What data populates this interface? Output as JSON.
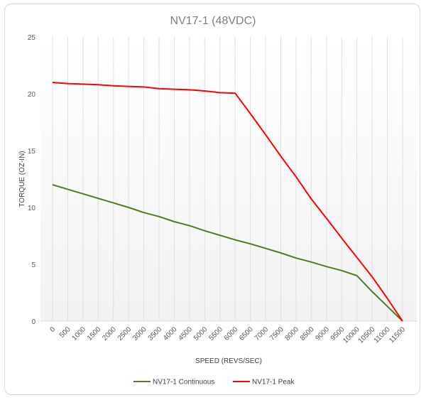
{
  "chart_data": {
    "type": "line",
    "title": "NV17-1 (48VDC)",
    "xlabel": "SPEED (REVS/SEC)",
    "ylabel": "TORQUE (OZ-IN)",
    "categories": [
      "0",
      "500",
      "1000",
      "1500",
      "2000",
      "2500",
      "3000",
      "3500",
      "4000",
      "4500",
      "5000",
      "5500",
      "6000",
      "6500",
      "7000",
      "7500",
      "8000",
      "8500",
      "9000",
      "9500",
      "10000",
      "10500",
      "11000",
      "11500"
    ],
    "ylim": [
      0,
      25
    ],
    "yticks": [
      "0",
      "5",
      "10",
      "15",
      "20",
      "25"
    ],
    "grid": "vertical",
    "legend_position": "bottom",
    "series": [
      {
        "name": "NV17-1 Continuous",
        "color": "#4f7a28",
        "values": [
          12.0,
          11.6,
          11.2,
          10.8,
          10.4,
          10.0,
          9.55,
          9.2,
          8.75,
          8.4,
          7.95,
          7.55,
          7.15,
          6.8,
          6.4,
          6.0,
          5.55,
          5.2,
          4.8,
          4.45,
          4.0,
          2.6,
          1.3,
          0
        ]
      },
      {
        "name": "NV17-1 Peak",
        "color": "#ff0000",
        "values": [
          21.0,
          20.9,
          20.85,
          20.8,
          20.7,
          20.65,
          20.6,
          20.45,
          20.4,
          20.35,
          20.25,
          20.1,
          20.05,
          18.25,
          16.4,
          14.5,
          12.7,
          10.75,
          9.05,
          7.3,
          5.6,
          3.9,
          2.0,
          0
        ]
      }
    ]
  }
}
